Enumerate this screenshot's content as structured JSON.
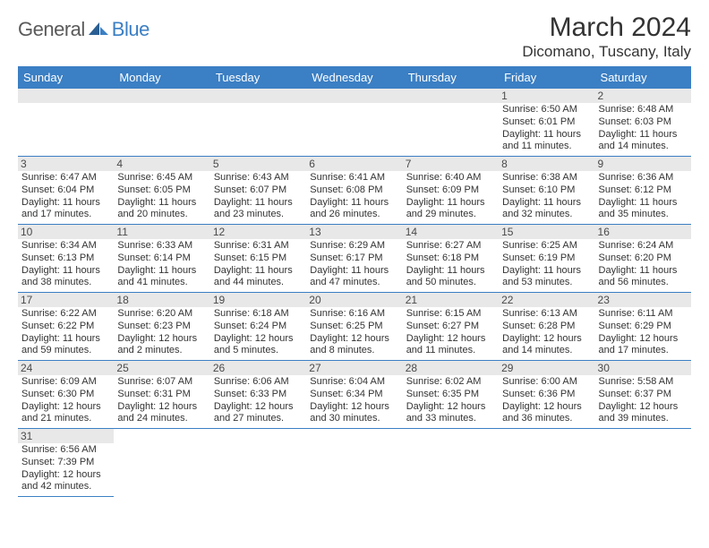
{
  "logo": {
    "part1": "General",
    "part2": "Blue"
  },
  "title": "March 2024",
  "location": "Dicomano, Tuscany, Italy",
  "colors": {
    "header_bg": "#3b7fc4",
    "header_text": "#ffffff",
    "row_border": "#3b7fc4",
    "daynum_bg": "#e8e8e8",
    "text": "#333333",
    "logo_gray": "#5a5a5a",
    "logo_blue": "#3b7fc4"
  },
  "typography": {
    "title_size_pt": 22,
    "location_size_pt": 13,
    "header_cell_size_pt": 10,
    "body_size_pt": 8
  },
  "weekdays": [
    "Sunday",
    "Monday",
    "Tuesday",
    "Wednesday",
    "Thursday",
    "Friday",
    "Saturday"
  ],
  "weeks": [
    [
      null,
      null,
      null,
      null,
      null,
      {
        "n": "1",
        "sunrise": "Sunrise: 6:50 AM",
        "sunset": "Sunset: 6:01 PM",
        "daylight": "Daylight: 11 hours and 11 minutes."
      },
      {
        "n": "2",
        "sunrise": "Sunrise: 6:48 AM",
        "sunset": "Sunset: 6:03 PM",
        "daylight": "Daylight: 11 hours and 14 minutes."
      }
    ],
    [
      {
        "n": "3",
        "sunrise": "Sunrise: 6:47 AM",
        "sunset": "Sunset: 6:04 PM",
        "daylight": "Daylight: 11 hours and 17 minutes."
      },
      {
        "n": "4",
        "sunrise": "Sunrise: 6:45 AM",
        "sunset": "Sunset: 6:05 PM",
        "daylight": "Daylight: 11 hours and 20 minutes."
      },
      {
        "n": "5",
        "sunrise": "Sunrise: 6:43 AM",
        "sunset": "Sunset: 6:07 PM",
        "daylight": "Daylight: 11 hours and 23 minutes."
      },
      {
        "n": "6",
        "sunrise": "Sunrise: 6:41 AM",
        "sunset": "Sunset: 6:08 PM",
        "daylight": "Daylight: 11 hours and 26 minutes."
      },
      {
        "n": "7",
        "sunrise": "Sunrise: 6:40 AM",
        "sunset": "Sunset: 6:09 PM",
        "daylight": "Daylight: 11 hours and 29 minutes."
      },
      {
        "n": "8",
        "sunrise": "Sunrise: 6:38 AM",
        "sunset": "Sunset: 6:10 PM",
        "daylight": "Daylight: 11 hours and 32 minutes."
      },
      {
        "n": "9",
        "sunrise": "Sunrise: 6:36 AM",
        "sunset": "Sunset: 6:12 PM",
        "daylight": "Daylight: 11 hours and 35 minutes."
      }
    ],
    [
      {
        "n": "10",
        "sunrise": "Sunrise: 6:34 AM",
        "sunset": "Sunset: 6:13 PM",
        "daylight": "Daylight: 11 hours and 38 minutes."
      },
      {
        "n": "11",
        "sunrise": "Sunrise: 6:33 AM",
        "sunset": "Sunset: 6:14 PM",
        "daylight": "Daylight: 11 hours and 41 minutes."
      },
      {
        "n": "12",
        "sunrise": "Sunrise: 6:31 AM",
        "sunset": "Sunset: 6:15 PM",
        "daylight": "Daylight: 11 hours and 44 minutes."
      },
      {
        "n": "13",
        "sunrise": "Sunrise: 6:29 AM",
        "sunset": "Sunset: 6:17 PM",
        "daylight": "Daylight: 11 hours and 47 minutes."
      },
      {
        "n": "14",
        "sunrise": "Sunrise: 6:27 AM",
        "sunset": "Sunset: 6:18 PM",
        "daylight": "Daylight: 11 hours and 50 minutes."
      },
      {
        "n": "15",
        "sunrise": "Sunrise: 6:25 AM",
        "sunset": "Sunset: 6:19 PM",
        "daylight": "Daylight: 11 hours and 53 minutes."
      },
      {
        "n": "16",
        "sunrise": "Sunrise: 6:24 AM",
        "sunset": "Sunset: 6:20 PM",
        "daylight": "Daylight: 11 hours and 56 minutes."
      }
    ],
    [
      {
        "n": "17",
        "sunrise": "Sunrise: 6:22 AM",
        "sunset": "Sunset: 6:22 PM",
        "daylight": "Daylight: 11 hours and 59 minutes."
      },
      {
        "n": "18",
        "sunrise": "Sunrise: 6:20 AM",
        "sunset": "Sunset: 6:23 PM",
        "daylight": "Daylight: 12 hours and 2 minutes."
      },
      {
        "n": "19",
        "sunrise": "Sunrise: 6:18 AM",
        "sunset": "Sunset: 6:24 PM",
        "daylight": "Daylight: 12 hours and 5 minutes."
      },
      {
        "n": "20",
        "sunrise": "Sunrise: 6:16 AM",
        "sunset": "Sunset: 6:25 PM",
        "daylight": "Daylight: 12 hours and 8 minutes."
      },
      {
        "n": "21",
        "sunrise": "Sunrise: 6:15 AM",
        "sunset": "Sunset: 6:27 PM",
        "daylight": "Daylight: 12 hours and 11 minutes."
      },
      {
        "n": "22",
        "sunrise": "Sunrise: 6:13 AM",
        "sunset": "Sunset: 6:28 PM",
        "daylight": "Daylight: 12 hours and 14 minutes."
      },
      {
        "n": "23",
        "sunrise": "Sunrise: 6:11 AM",
        "sunset": "Sunset: 6:29 PM",
        "daylight": "Daylight: 12 hours and 17 minutes."
      }
    ],
    [
      {
        "n": "24",
        "sunrise": "Sunrise: 6:09 AM",
        "sunset": "Sunset: 6:30 PM",
        "daylight": "Daylight: 12 hours and 21 minutes."
      },
      {
        "n": "25",
        "sunrise": "Sunrise: 6:07 AM",
        "sunset": "Sunset: 6:31 PM",
        "daylight": "Daylight: 12 hours and 24 minutes."
      },
      {
        "n": "26",
        "sunrise": "Sunrise: 6:06 AM",
        "sunset": "Sunset: 6:33 PM",
        "daylight": "Daylight: 12 hours and 27 minutes."
      },
      {
        "n": "27",
        "sunrise": "Sunrise: 6:04 AM",
        "sunset": "Sunset: 6:34 PM",
        "daylight": "Daylight: 12 hours and 30 minutes."
      },
      {
        "n": "28",
        "sunrise": "Sunrise: 6:02 AM",
        "sunset": "Sunset: 6:35 PM",
        "daylight": "Daylight: 12 hours and 33 minutes."
      },
      {
        "n": "29",
        "sunrise": "Sunrise: 6:00 AM",
        "sunset": "Sunset: 6:36 PM",
        "daylight": "Daylight: 12 hours and 36 minutes."
      },
      {
        "n": "30",
        "sunrise": "Sunrise: 5:58 AM",
        "sunset": "Sunset: 6:37 PM",
        "daylight": "Daylight: 12 hours and 39 minutes."
      }
    ],
    [
      {
        "n": "31",
        "sunrise": "Sunrise: 6:56 AM",
        "sunset": "Sunset: 7:39 PM",
        "daylight": "Daylight: 12 hours and 42 minutes."
      },
      null,
      null,
      null,
      null,
      null,
      null
    ]
  ]
}
